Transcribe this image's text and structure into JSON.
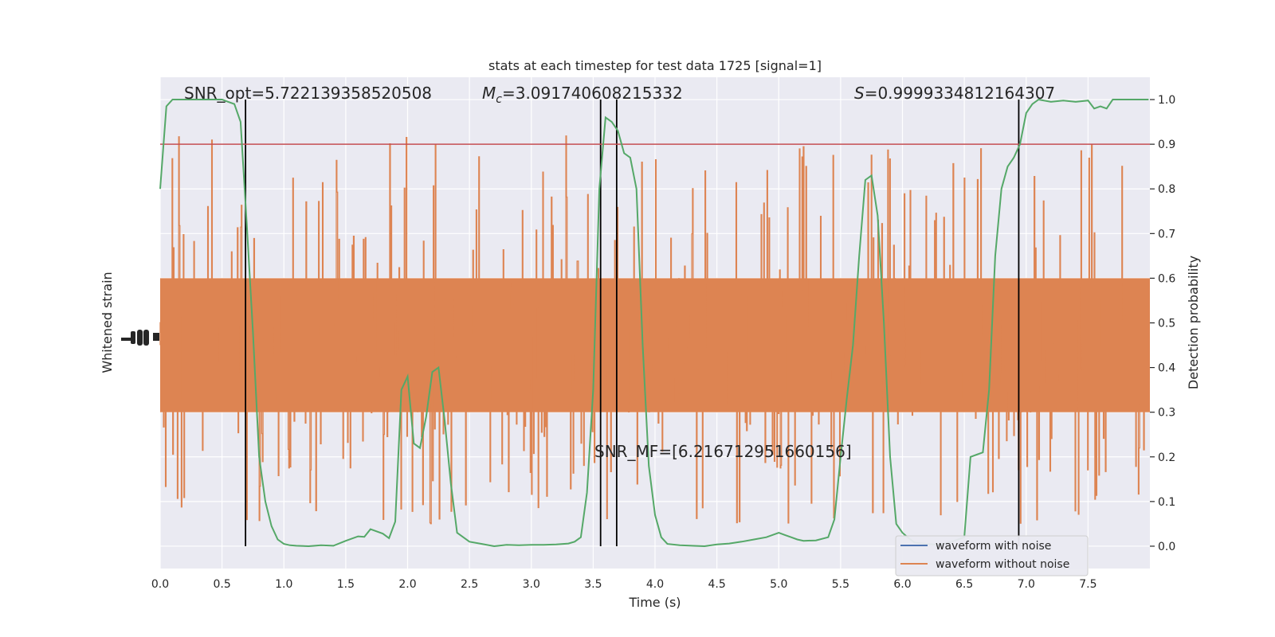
{
  "chart_data": {
    "type": "line",
    "title": "stats at each timestep for test data 1725 [signal=1]",
    "xlabel": "Time (s)",
    "ylabel_left": "Whitened strain",
    "ylabel_right": "Detection probability",
    "xlim": [
      0,
      8
    ],
    "ylim_right": [
      -0.05,
      1.05
    ],
    "x_ticks": [
      0.0,
      0.5,
      1.0,
      1.5,
      2.0,
      2.5,
      3.0,
      3.5,
      4.0,
      4.5,
      5.0,
      5.5,
      6.0,
      6.5,
      7.0,
      7.5
    ],
    "x_tick_labels": [
      "0.0",
      "0.5",
      "1.0",
      "1.5",
      "2.0",
      "2.5",
      "3.0",
      "3.5",
      "4.0",
      "4.5",
      "5.0",
      "5.5",
      "6.0",
      "6.5",
      "7.0",
      "7.5"
    ],
    "y_right_ticks": [
      0.0,
      0.1,
      0.2,
      0.3,
      0.4,
      0.5,
      0.6,
      0.7,
      0.8,
      0.9,
      1.0
    ],
    "y_right_tick_labels": [
      "0.0",
      "0.1",
      "0.2",
      "0.3",
      "0.4",
      "0.5",
      "0.6",
      "0.7",
      "0.8",
      "0.9",
      "1.0"
    ],
    "grid": true,
    "legend_position": "bottom-right",
    "legend": [
      {
        "name": "waveform with noise",
        "color": "#4c72b0"
      },
      {
        "name": "waveform without noise",
        "color": "#dd8452"
      }
    ],
    "annotations": {
      "snr_opt": "SNR_opt=5.722139358520508",
      "mc_symbol": "M",
      "mc_sub": "c",
      "mc_value": "=3.091740608215332",
      "s_symbol": "S",
      "s_value": "=0.9999334812164307",
      "snr_mf": "SNR_MF=[6.216712951660156]"
    },
    "threshold": {
      "value": 0.9,
      "color": "#c44e52"
    },
    "vertical_lines": [
      0.69,
      3.56,
      3.69,
      6.94
    ],
    "noise_band": {
      "color": "#dd8452",
      "dense_low": 0.3,
      "dense_high": 0.6,
      "spike_max": 1.0,
      "spike_min": 0.0
    },
    "detection_series": {
      "name": "Detection probability",
      "color": "#55a868",
      "x": [
        0.0,
        0.05,
        0.1,
        0.2,
        0.3,
        0.4,
        0.5,
        0.55,
        0.6,
        0.65,
        0.7,
        0.75,
        0.8,
        0.85,
        0.9,
        0.95,
        1.0,
        1.05,
        1.1,
        1.2,
        1.3,
        1.4,
        1.5,
        1.6,
        1.65,
        1.7,
        1.8,
        1.85,
        1.9,
        1.95,
        2.0,
        2.05,
        2.1,
        2.15,
        2.2,
        2.25,
        2.3,
        2.35,
        2.4,
        2.5,
        2.6,
        2.7,
        2.8,
        2.9,
        3.0,
        3.1,
        3.2,
        3.3,
        3.35,
        3.4,
        3.45,
        3.5,
        3.55,
        3.6,
        3.65,
        3.7,
        3.75,
        3.8,
        3.85,
        3.9,
        3.95,
        4.0,
        4.05,
        4.1,
        4.2,
        4.3,
        4.4,
        4.5,
        4.6,
        4.7,
        4.8,
        4.9,
        5.0,
        5.05,
        5.1,
        5.15,
        5.2,
        5.3,
        5.4,
        5.45,
        5.5,
        5.55,
        5.6,
        5.65,
        5.7,
        5.75,
        5.8,
        5.85,
        5.9,
        5.95,
        6.0,
        6.05,
        6.1,
        6.2,
        6.3,
        6.4,
        6.5,
        6.55,
        6.6,
        6.65,
        6.7,
        6.75,
        6.8,
        6.85,
        6.9,
        6.95,
        7.0,
        7.05,
        7.1,
        7.2,
        7.3,
        7.4,
        7.5,
        7.55,
        7.6,
        7.65,
        7.7,
        7.8,
        7.9,
        7.99
      ],
      "values": [
        0.8,
        0.985,
        1.0,
        1.0,
        1.0,
        1.0,
        1.0,
        0.995,
        0.99,
        0.95,
        0.72,
        0.48,
        0.2,
        0.1,
        0.045,
        0.015,
        0.005,
        0.002,
        0.001,
        0.0,
        0.002,
        0.001,
        0.012,
        0.022,
        0.021,
        0.038,
        0.028,
        0.018,
        0.055,
        0.35,
        0.38,
        0.23,
        0.22,
        0.29,
        0.39,
        0.4,
        0.28,
        0.14,
        0.03,
        0.01,
        0.005,
        0.0,
        0.003,
        0.002,
        0.003,
        0.003,
        0.004,
        0.006,
        0.01,
        0.02,
        0.12,
        0.35,
        0.8,
        0.96,
        0.95,
        0.93,
        0.88,
        0.87,
        0.8,
        0.45,
        0.18,
        0.07,
        0.02,
        0.005,
        0.002,
        0.001,
        0.0,
        0.004,
        0.006,
        0.01,
        0.015,
        0.02,
        0.03,
        0.025,
        0.02,
        0.015,
        0.012,
        0.013,
        0.02,
        0.06,
        0.2,
        0.33,
        0.45,
        0.65,
        0.82,
        0.83,
        0.74,
        0.5,
        0.2,
        0.05,
        0.03,
        0.018,
        0.008,
        0.005,
        0.003,
        0.01,
        0.02,
        0.2,
        0.205,
        0.21,
        0.35,
        0.65,
        0.8,
        0.85,
        0.87,
        0.9,
        0.97,
        0.99,
        1.0,
        0.995,
        0.998,
        0.995,
        0.998,
        0.98,
        0.985,
        0.98,
        1.0,
        1.0,
        1.0,
        1.0
      ]
    }
  }
}
